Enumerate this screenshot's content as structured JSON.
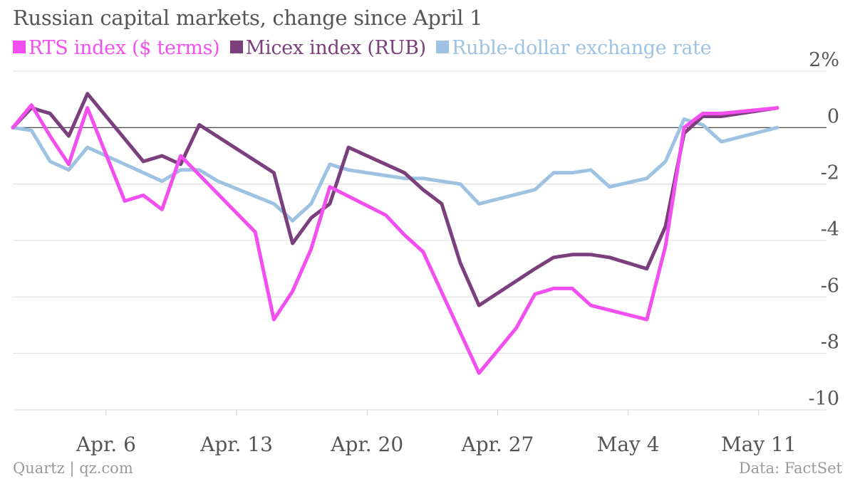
{
  "title": "Russian capital markets, change since April 1",
  "footer": {
    "source_left": "Quartz | qz.com",
    "source_right": "Data: FactSet"
  },
  "colors": {
    "rts": "#f34ff0",
    "micex": "#7b3f7e",
    "ruble": "#9ec3e2",
    "grid": "#dcdcdc",
    "zero": "#333333",
    "text": "#555555"
  },
  "chart_data": {
    "type": "line",
    "title": "Russian capital markets, change since April 1",
    "xlabel": "",
    "ylabel": "",
    "ylim": [
      -10,
      2
    ],
    "xlim": [
      "2015-04-01",
      "2015-05-12"
    ],
    "y_ticks": [
      "2%",
      "0",
      "-2",
      "-4",
      "-6",
      "-8",
      "-10"
    ],
    "x_ticks": [
      {
        "date": "2015-04-06",
        "label": "Apr. 6"
      },
      {
        "date": "2015-04-13",
        "label": "Apr. 13"
      },
      {
        "date": "2015-04-20",
        "label": "Apr. 20"
      },
      {
        "date": "2015-04-27",
        "label": "Apr. 27"
      },
      {
        "date": "2015-05-04",
        "label": "May 4"
      },
      {
        "date": "2015-05-11",
        "label": "May 11"
      }
    ],
    "grid": true,
    "legend_position": "top-left",
    "series": [
      {
        "name": "RTS index ($ terms)",
        "points": [
          [
            "2015-04-01",
            0.0
          ],
          [
            "2015-04-02",
            0.8
          ],
          [
            "2015-04-03",
            -0.3
          ],
          [
            "2015-04-04",
            -1.3
          ],
          [
            "2015-04-05",
            0.7
          ],
          [
            "2015-04-07",
            -2.6
          ],
          [
            "2015-04-08",
            -2.4
          ],
          [
            "2015-04-09",
            -2.9
          ],
          [
            "2015-04-10",
            -1.0
          ],
          [
            "2015-04-14",
            -3.7
          ],
          [
            "2015-04-15",
            -6.8
          ],
          [
            "2015-04-16",
            -5.8
          ],
          [
            "2015-04-17",
            -4.3
          ],
          [
            "2015-04-18",
            -2.1
          ],
          [
            "2015-04-21",
            -3.1
          ],
          [
            "2015-04-22",
            -3.8
          ],
          [
            "2015-04-23",
            -4.4
          ],
          [
            "2015-04-26",
            -8.7
          ],
          [
            "2015-04-28",
            -7.1
          ],
          [
            "2015-04-29",
            -5.9
          ],
          [
            "2015-04-30",
            -5.7
          ],
          [
            "2015-05-01",
            -5.7
          ],
          [
            "2015-05-02",
            -6.3
          ],
          [
            "2015-05-05",
            -6.8
          ],
          [
            "2015-05-06",
            -4.2
          ],
          [
            "2015-05-07",
            0.0
          ],
          [
            "2015-05-08",
            0.5
          ],
          [
            "2015-05-09",
            0.5
          ],
          [
            "2015-05-12",
            0.7
          ]
        ]
      },
      {
        "name": "Micex index (RUB)",
        "points": [
          [
            "2015-04-01",
            0.0
          ],
          [
            "2015-04-02",
            0.7
          ],
          [
            "2015-04-03",
            0.5
          ],
          [
            "2015-04-04",
            -0.3
          ],
          [
            "2015-04-05",
            1.2
          ],
          [
            "2015-04-08",
            -1.2
          ],
          [
            "2015-04-09",
            -1.0
          ],
          [
            "2015-04-10",
            -1.3
          ],
          [
            "2015-04-11",
            0.1
          ],
          [
            "2015-04-15",
            -1.6
          ],
          [
            "2015-04-16",
            -4.1
          ],
          [
            "2015-04-17",
            -3.2
          ],
          [
            "2015-04-18",
            -2.7
          ],
          [
            "2015-04-19",
            -0.7
          ],
          [
            "2015-04-22",
            -1.6
          ],
          [
            "2015-04-23",
            -2.2
          ],
          [
            "2015-04-24",
            -2.7
          ],
          [
            "2015-04-25",
            -4.8
          ],
          [
            "2015-04-26",
            -6.3
          ],
          [
            "2015-04-29",
            -5.0
          ],
          [
            "2015-04-30",
            -4.6
          ],
          [
            "2015-05-01",
            -4.5
          ],
          [
            "2015-05-02",
            -4.5
          ],
          [
            "2015-05-03",
            -4.6
          ],
          [
            "2015-05-05",
            -5.0
          ],
          [
            "2015-05-06",
            -3.5
          ],
          [
            "2015-05-07",
            -0.2
          ],
          [
            "2015-05-08",
            0.4
          ],
          [
            "2015-05-09",
            0.4
          ],
          [
            "2015-05-12",
            0.7
          ]
        ]
      },
      {
        "name": "Ruble-dollar exchange rate",
        "points": [
          [
            "2015-04-01",
            0.0
          ],
          [
            "2015-04-02",
            -0.1
          ],
          [
            "2015-04-03",
            -1.2
          ],
          [
            "2015-04-04",
            -1.5
          ],
          [
            "2015-04-05",
            -0.7
          ],
          [
            "2015-04-09",
            -1.9
          ],
          [
            "2015-04-10",
            -1.5
          ],
          [
            "2015-04-11",
            -1.5
          ],
          [
            "2015-04-12",
            -1.9
          ],
          [
            "2015-04-15",
            -2.7
          ],
          [
            "2015-04-16",
            -3.3
          ],
          [
            "2015-04-17",
            -2.7
          ],
          [
            "2015-04-18",
            -1.3
          ],
          [
            "2015-04-19",
            -1.5
          ],
          [
            "2015-04-22",
            -1.8
          ],
          [
            "2015-04-23",
            -1.8
          ],
          [
            "2015-04-24",
            -1.9
          ],
          [
            "2015-04-25",
            -2.0
          ],
          [
            "2015-04-26",
            -2.7
          ],
          [
            "2015-04-29",
            -2.2
          ],
          [
            "2015-04-30",
            -1.6
          ],
          [
            "2015-05-01",
            -1.6
          ],
          [
            "2015-05-02",
            -1.5
          ],
          [
            "2015-05-03",
            -2.1
          ],
          [
            "2015-05-05",
            -1.8
          ],
          [
            "2015-05-06",
            -1.2
          ],
          [
            "2015-05-07",
            0.3
          ],
          [
            "2015-05-08",
            0.1
          ],
          [
            "2015-05-09",
            -0.5
          ],
          [
            "2015-05-12",
            0.0
          ]
        ]
      }
    ]
  }
}
